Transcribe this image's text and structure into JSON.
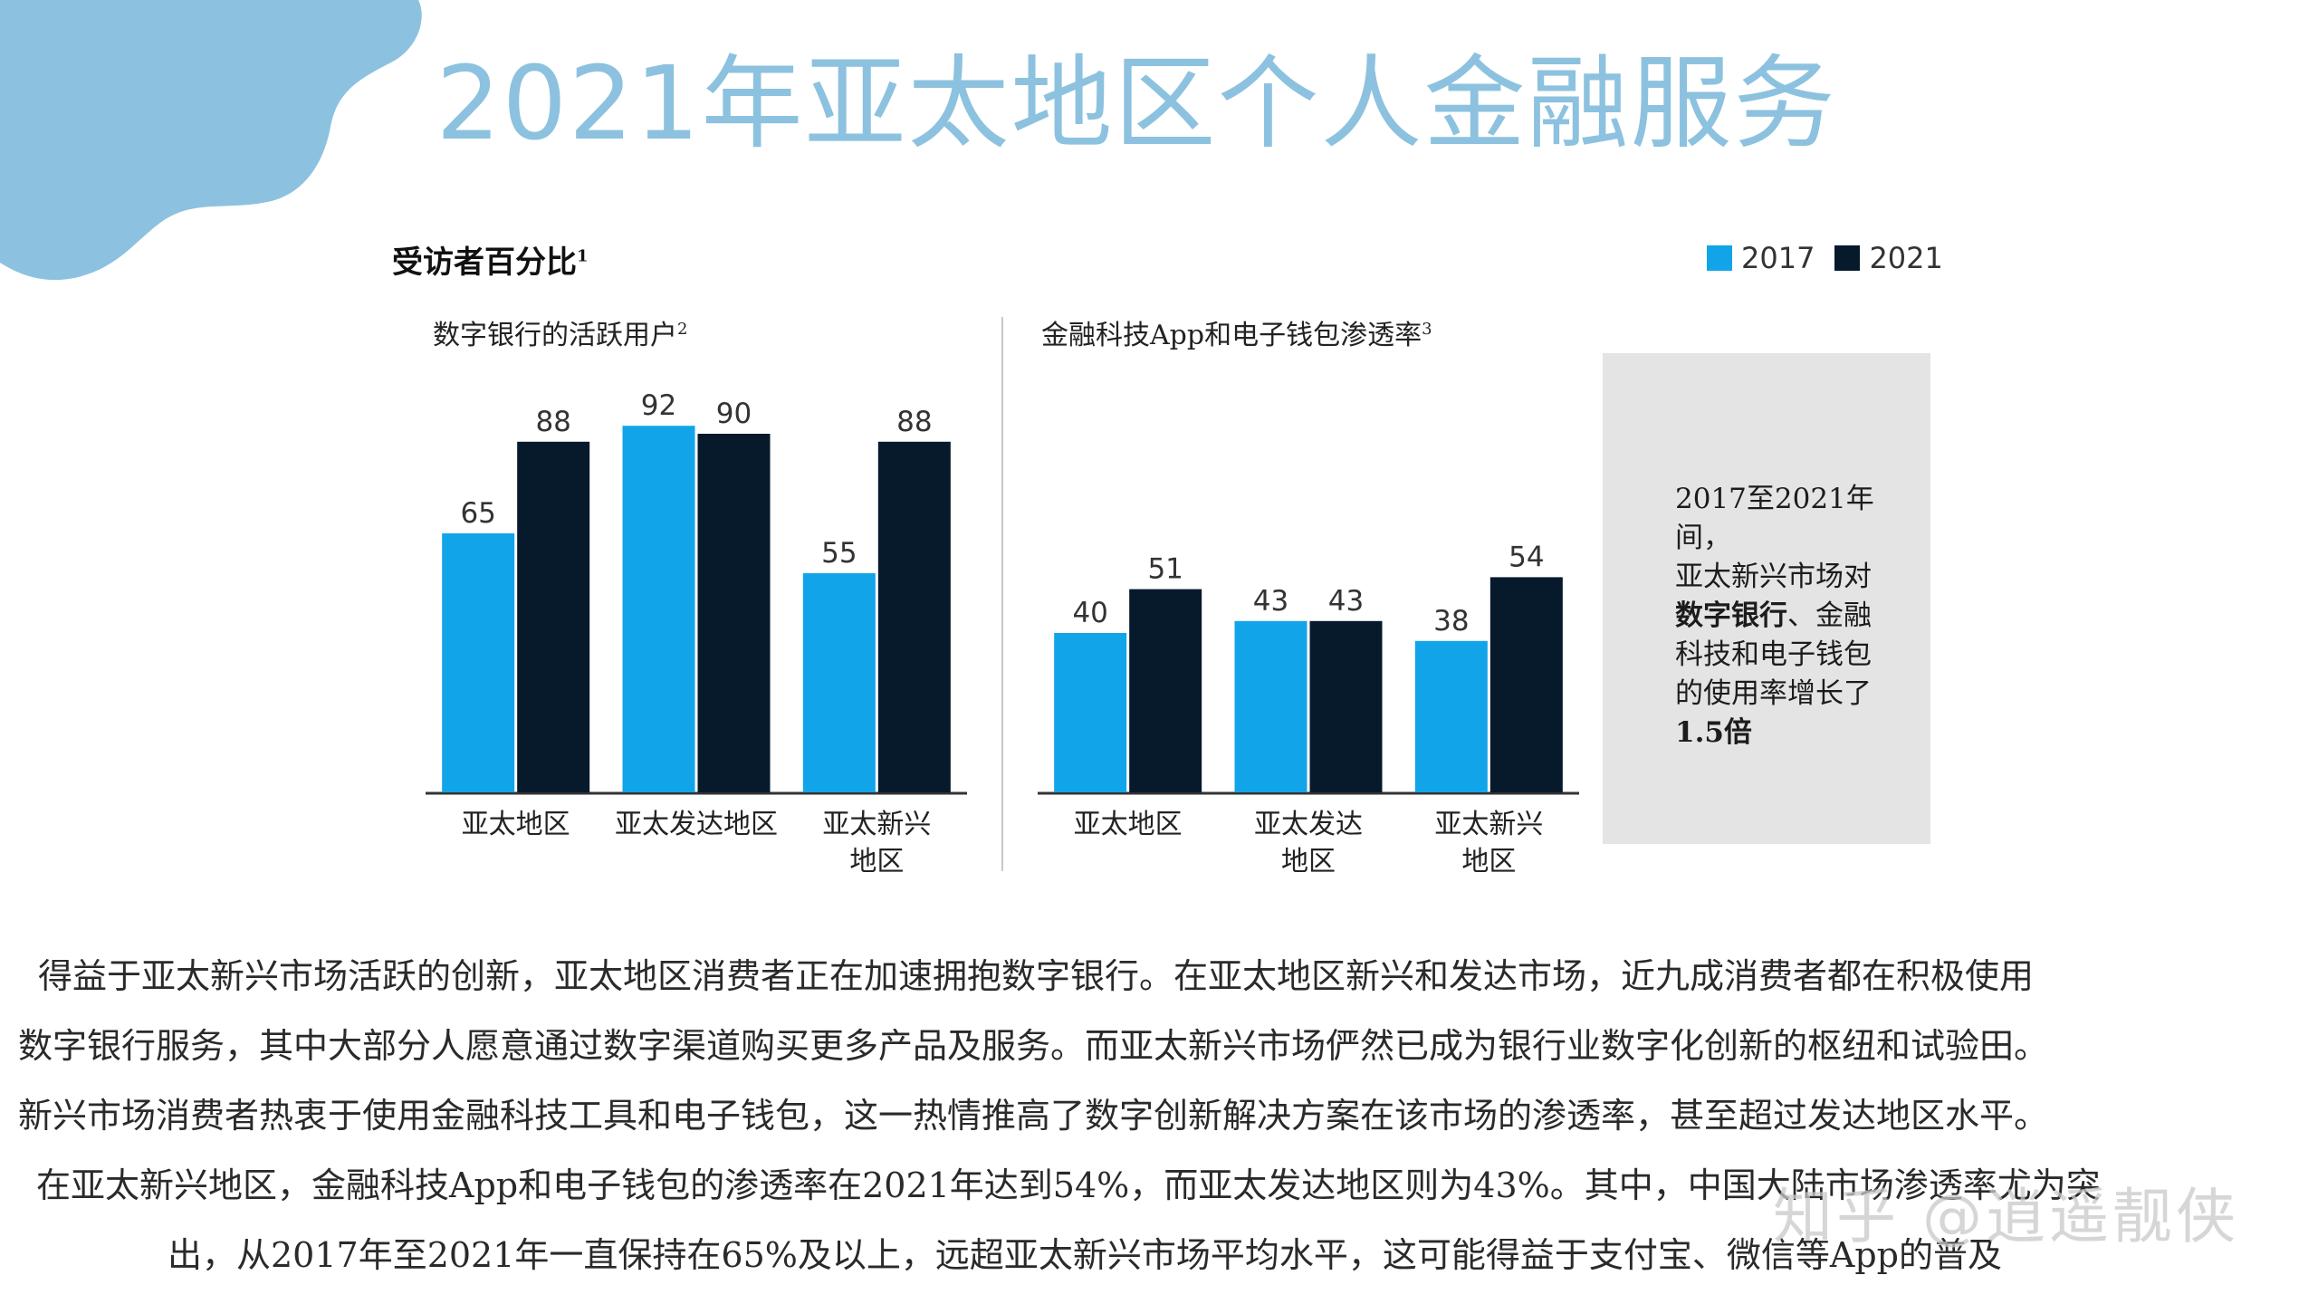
{
  "title": "2021年亚太地区个人金融服务",
  "panel": {
    "heading": "受访者百分比",
    "heading_note": "1",
    "legend": [
      {
        "label": "2017",
        "color": "#12a4e8"
      },
      {
        "label": "2021",
        "color": "#071a2c"
      }
    ]
  },
  "colors": {
    "series_2017": "#12a4e8",
    "series_2021": "#071a2c",
    "accent": "#8cc2df",
    "callout_bg": "#e4e4e4"
  },
  "chart_data": [
    {
      "type": "bar",
      "title": "数字银行的活跃用户",
      "title_note": "2",
      "categories": [
        "亚太地区",
        "亚太发达地区",
        "亚太新兴地区"
      ],
      "category_lines": [
        [
          "亚太地区"
        ],
        [
          "亚太发达地区"
        ],
        [
          "亚太新兴",
          "地区"
        ]
      ],
      "series": [
        {
          "name": "2017",
          "values": [
            65,
            92,
            55
          ]
        },
        {
          "name": "2021",
          "values": [
            88,
            90,
            88
          ]
        }
      ],
      "ylim": [
        0,
        100
      ],
      "xlabel": "",
      "ylabel": ""
    },
    {
      "type": "bar",
      "title": "金融科技App和电子钱包渗透率",
      "title_note": "3",
      "categories": [
        "亚太地区",
        "亚太发达地区",
        "亚太新兴地区"
      ],
      "category_lines": [
        [
          "亚太地区"
        ],
        [
          "亚太发达",
          "地区"
        ],
        [
          "亚太新兴",
          "地区"
        ]
      ],
      "series": [
        {
          "name": "2017",
          "values": [
            40,
            43,
            38
          ]
        },
        {
          "name": "2021",
          "values": [
            51,
            43,
            54
          ]
        }
      ],
      "ylim": [
        0,
        100
      ],
      "xlabel": "",
      "ylabel": ""
    }
  ],
  "callout": {
    "line1": "2017至2021年间，",
    "line2": "亚太新兴市场对",
    "line3_bold": "数字银行",
    "line3_rest": "、金融",
    "line4": "科技和电子钱包",
    "line5": "的使用率增长了",
    "line6_bold": "1.5倍"
  },
  "body": {
    "line1": "得益于亚太新兴市场活跃的创新，亚太地区消费者正在加速拥抱数字银行。在亚太地区新兴和发达市场，近九成消费者都在积极使用",
    "line2": "数字银行服务，其中大部分人愿意通过数字渠道购买更多产品及服务。而亚太新兴市场俨然已成为银行业数字化创新的枢纽和试验田。",
    "line3": "新兴市场消费者热衷于使用金融科技工具和电子钱包，这一热情推高了数字创新解决方案在该市场的渗透率，甚至超过发达地区水平。",
    "line4": "在亚太新兴地区，金融科技App和电子钱包的渗透率在2021年达到54%，而亚太发达地区则为43%。其中，中国大陆市场渗透率尤为突",
    "line5": "出，从2017年至2021年一直保持在65%及以上，远超亚太新兴市场平均水平，这可能得益于支付宝、微信等App的普及"
  },
  "watermark": "知乎 @逍遥靓侠"
}
